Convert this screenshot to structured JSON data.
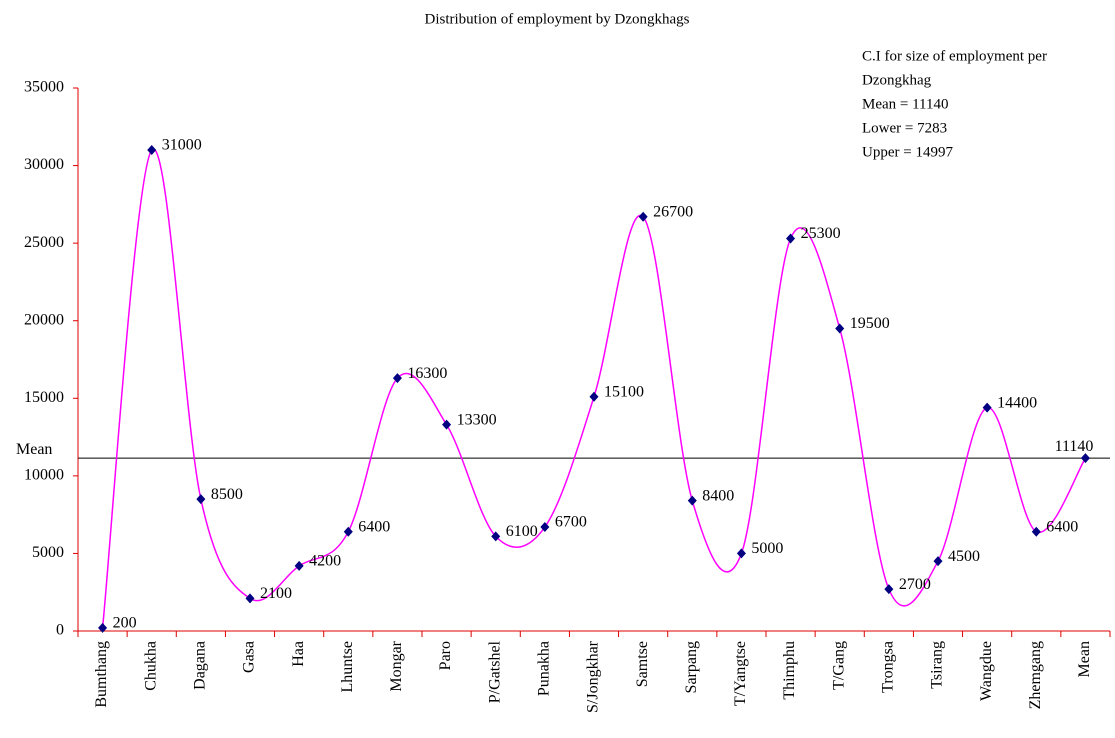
{
  "chart_data": {
    "type": "line",
    "title": "Distribution of employment by Dzongkhags",
    "categories": [
      "Bumthang",
      "Chukha",
      "Dagana",
      "Gasa",
      "Haa",
      "Lhuntse",
      "Mongar",
      "Paro",
      "P/Gatshel",
      "Punakha",
      "S/Jongkhar",
      "Samtse",
      "Sarpang",
      "T/Yangtse",
      "Thimphu",
      "T/Gang",
      "Trongsa",
      "Tsirang",
      "Wangdue",
      "Zhemgang",
      "Mean"
    ],
    "series": [
      {
        "name": "Employment",
        "color": "#ff00ff",
        "marker_color": "#000080",
        "values": [
          200,
          31000,
          8500,
          2100,
          4200,
          6400,
          16300,
          13300,
          6100,
          6700,
          15100,
          26700,
          8400,
          5000,
          25300,
          19500,
          2700,
          4500,
          14400,
          6400,
          11140
        ]
      }
    ],
    "ylim": [
      0,
      35000
    ],
    "yticks": [
      0,
      5000,
      10000,
      15000,
      20000,
      25000,
      30000,
      35000
    ],
    "grid": false,
    "smooth": true,
    "reference_line": {
      "label": "Mean",
      "value": 11140
    },
    "annotation": [
      "C.I for size of employment per",
      "Dzongkhag",
      "Mean  = 11140",
      "Lower = 7283",
      "Upper = 14997"
    ]
  }
}
